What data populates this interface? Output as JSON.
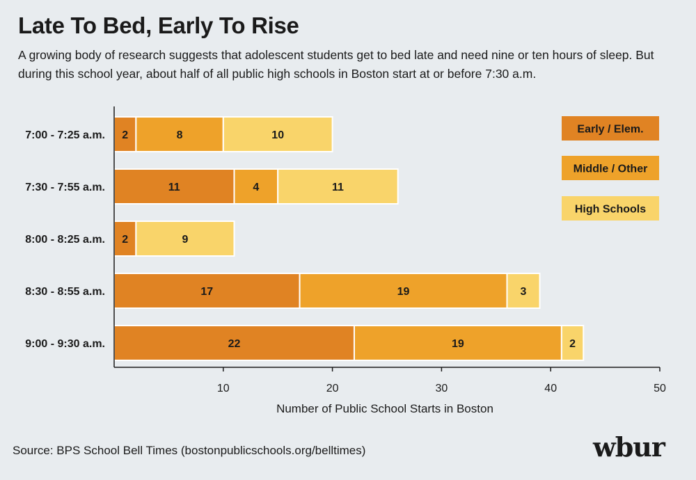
{
  "header": {
    "title": "Late To Bed, Early To Rise",
    "subtitle": "A growing body of research suggests that adolescent students get to bed late and need nine or ten hours of sleep. But during this school year, about half of all public high schools in Boston start at or before 7:30 a.m."
  },
  "footer": {
    "source": "Source: BPS School Bell Times (bostonpublicschools.org/belltimes)",
    "logo": "wbur"
  },
  "colors": {
    "Early / Elem.": "#e08323",
    "Middle / Other": "#eea22a",
    "High Schools": "#f9d46a"
  },
  "chart_data": {
    "type": "bar",
    "orientation": "horizontal",
    "stacked": true,
    "categories": [
      "7:00 - 7:25 a.m.",
      "7:30 - 7:55 a.m.",
      "8:00 - 8:25 a.m.",
      "8:30 - 8:55 a.m.",
      "9:00 - 9:30 a.m."
    ],
    "series": [
      {
        "name": "Early / Elem.",
        "values": [
          2,
          11,
          2,
          17,
          22
        ]
      },
      {
        "name": "Middle / Other",
        "values": [
          8,
          4,
          0,
          19,
          19
        ]
      },
      {
        "name": "High Schools",
        "values": [
          10,
          11,
          9,
          3,
          2
        ]
      }
    ],
    "xlabel": "Number of Public School Starts in Boston",
    "ylabel": "",
    "xlim": [
      0,
      50
    ],
    "xticks": [
      10,
      20,
      30,
      40,
      50
    ],
    "legend_position": "top-right",
    "grid": false
  }
}
